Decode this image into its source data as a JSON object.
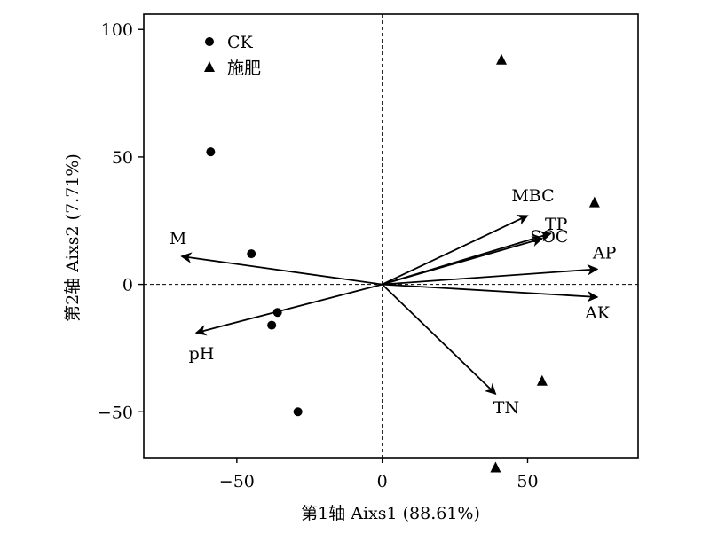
{
  "chart_data": {
    "type": "scatter",
    "xlabel": "第1轴 Aixs1 (88.61%)",
    "ylabel": "第2轴 Aixs2 (7.71%)",
    "xlim": [
      -82,
      88
    ],
    "ylim": [
      -68,
      106
    ],
    "xticks": [
      -50,
      0,
      50
    ],
    "yticks": [
      -50,
      0,
      50,
      100
    ],
    "xtick_labels": [
      "−50",
      "0",
      "50"
    ],
    "ytick_labels": [
      "−50",
      "0",
      "50",
      "100"
    ],
    "grid": false,
    "legend_position": "top-left",
    "series": [
      {
        "name": "CK",
        "marker": "circle",
        "points": [
          {
            "x": -59,
            "y": 52
          },
          {
            "x": -45,
            "y": 12
          },
          {
            "x": -36,
            "y": -11
          },
          {
            "x": -38,
            "y": -16
          },
          {
            "x": -29,
            "y": -50
          }
        ]
      },
      {
        "name": "施肥",
        "marker": "triangle",
        "points": [
          {
            "x": 41,
            "y": 88
          },
          {
            "x": 73,
            "y": 32
          },
          {
            "x": 55,
            "y": -38
          },
          {
            "x": 39,
            "y": -72
          }
        ]
      }
    ],
    "vectors": [
      {
        "label": "MBC",
        "x": 50,
        "y": 27
      },
      {
        "label": "TP",
        "x": 58,
        "y": 20
      },
      {
        "label": "SOC",
        "x": 55,
        "y": 18
      },
      {
        "label": "AP",
        "x": 74,
        "y": 6
      },
      {
        "label": "AK",
        "x": 74,
        "y": -5
      },
      {
        "label": "TN",
        "x": 39,
        "y": -43
      },
      {
        "label": "M",
        "x": -69,
        "y": 11
      },
      {
        "label": "pH",
        "x": -64,
        "y": -19
      }
    ]
  }
}
